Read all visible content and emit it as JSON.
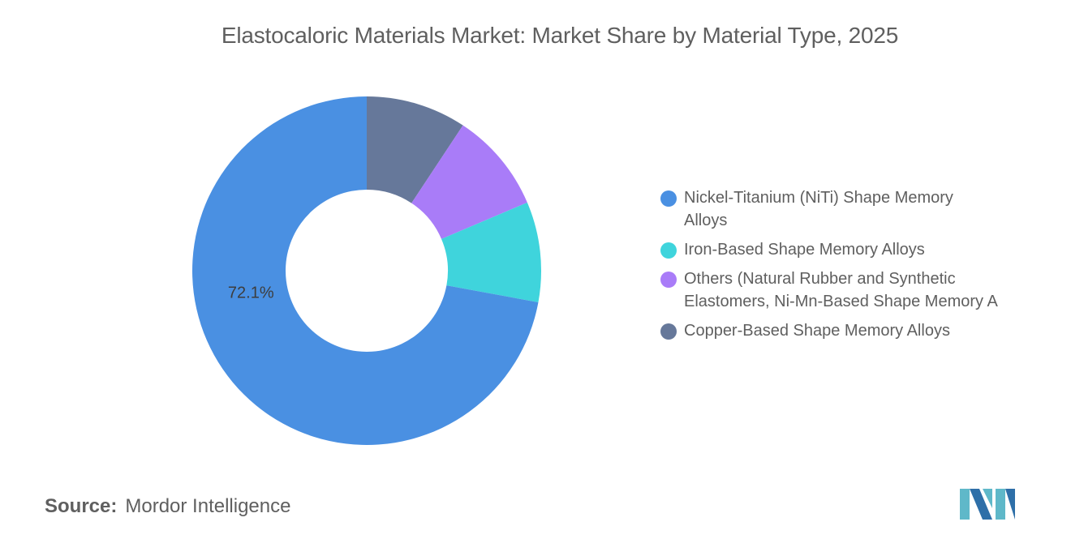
{
  "chart_data": {
    "type": "pie",
    "donut": true,
    "title": "Elastocaloric Materials Market: Market Share by Material Type, 2025",
    "categories": [
      "Nickel-Titanium (NiTi) Shape Memory Alloys",
      "Iron-Based Shape Memory Alloys",
      "Others (Natural Rubber and Synthetic Elastomers, Ni-Mn-Based Shape Memory A",
      "Copper-Based Shape Memory Alloys"
    ],
    "values": [
      72.1,
      9.3,
      9.3,
      9.3
    ],
    "colors": [
      "#4a90e2",
      "#3fd4dc",
      "#a97cf8",
      "#66789a"
    ],
    "data_labels": [
      "72.1%",
      "",
      "",
      ""
    ],
    "legend_position": "right"
  },
  "legend": {
    "items": [
      {
        "label": "Nickel-Titanium (NiTi) Shape Memory\nAlloys",
        "color": "#4a90e2"
      },
      {
        "label": "Iron-Based Shape Memory Alloys",
        "color": "#3fd4dc"
      },
      {
        "label": "Others (Natural Rubber and Synthetic\nElastomers, Ni-Mn-Based Shape Memory A",
        "color": "#a97cf8"
      },
      {
        "label": "Copper-Based Shape Memory Alloys",
        "color": "#66789a"
      }
    ]
  },
  "source": {
    "label": "Source:",
    "text": "Mordor Intelligence"
  },
  "logo": {
    "name": "mordor-intelligence-logo",
    "colors": [
      "#5fb8c9",
      "#2e6fa8"
    ]
  }
}
